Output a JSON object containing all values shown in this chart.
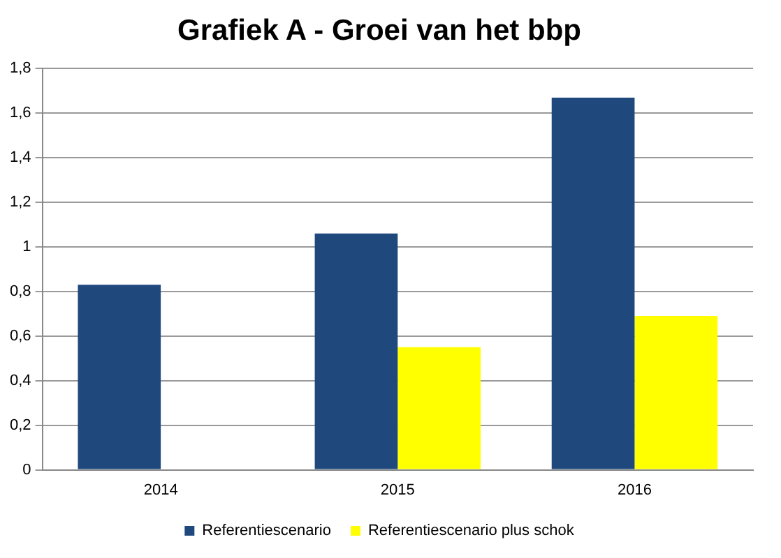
{
  "chart_data": {
    "type": "bar",
    "title": "Grafiek A - Groei van het bbp",
    "categories": [
      "2014",
      "2015",
      "2016"
    ],
    "series": [
      {
        "name": "Referentiescenario",
        "color": "#1f497d",
        "values": [
          0.83,
          1.06,
          1.67
        ]
      },
      {
        "name": "Referentiescenario plus schok",
        "color": "#ffff00",
        "values": [
          null,
          0.55,
          0.69
        ]
      }
    ],
    "ylim": [
      0,
      1.8
    ],
    "yticks": [
      0,
      {
        "value": 0.2,
        "label": "0,2"
      },
      {
        "value": 0.4,
        "label": "0,4"
      },
      {
        "value": 0.6,
        "label": "0,6"
      },
      {
        "value": 0.8,
        "label": "0,8"
      },
      1,
      {
        "value": 1.2,
        "label": "1,2"
      },
      {
        "value": 1.4,
        "label": "1,4"
      },
      {
        "value": 1.6,
        "label": "1,6"
      },
      {
        "value": 1.8,
        "label": "1,8"
      }
    ],
    "grid": "y",
    "legend": "bottom"
  }
}
